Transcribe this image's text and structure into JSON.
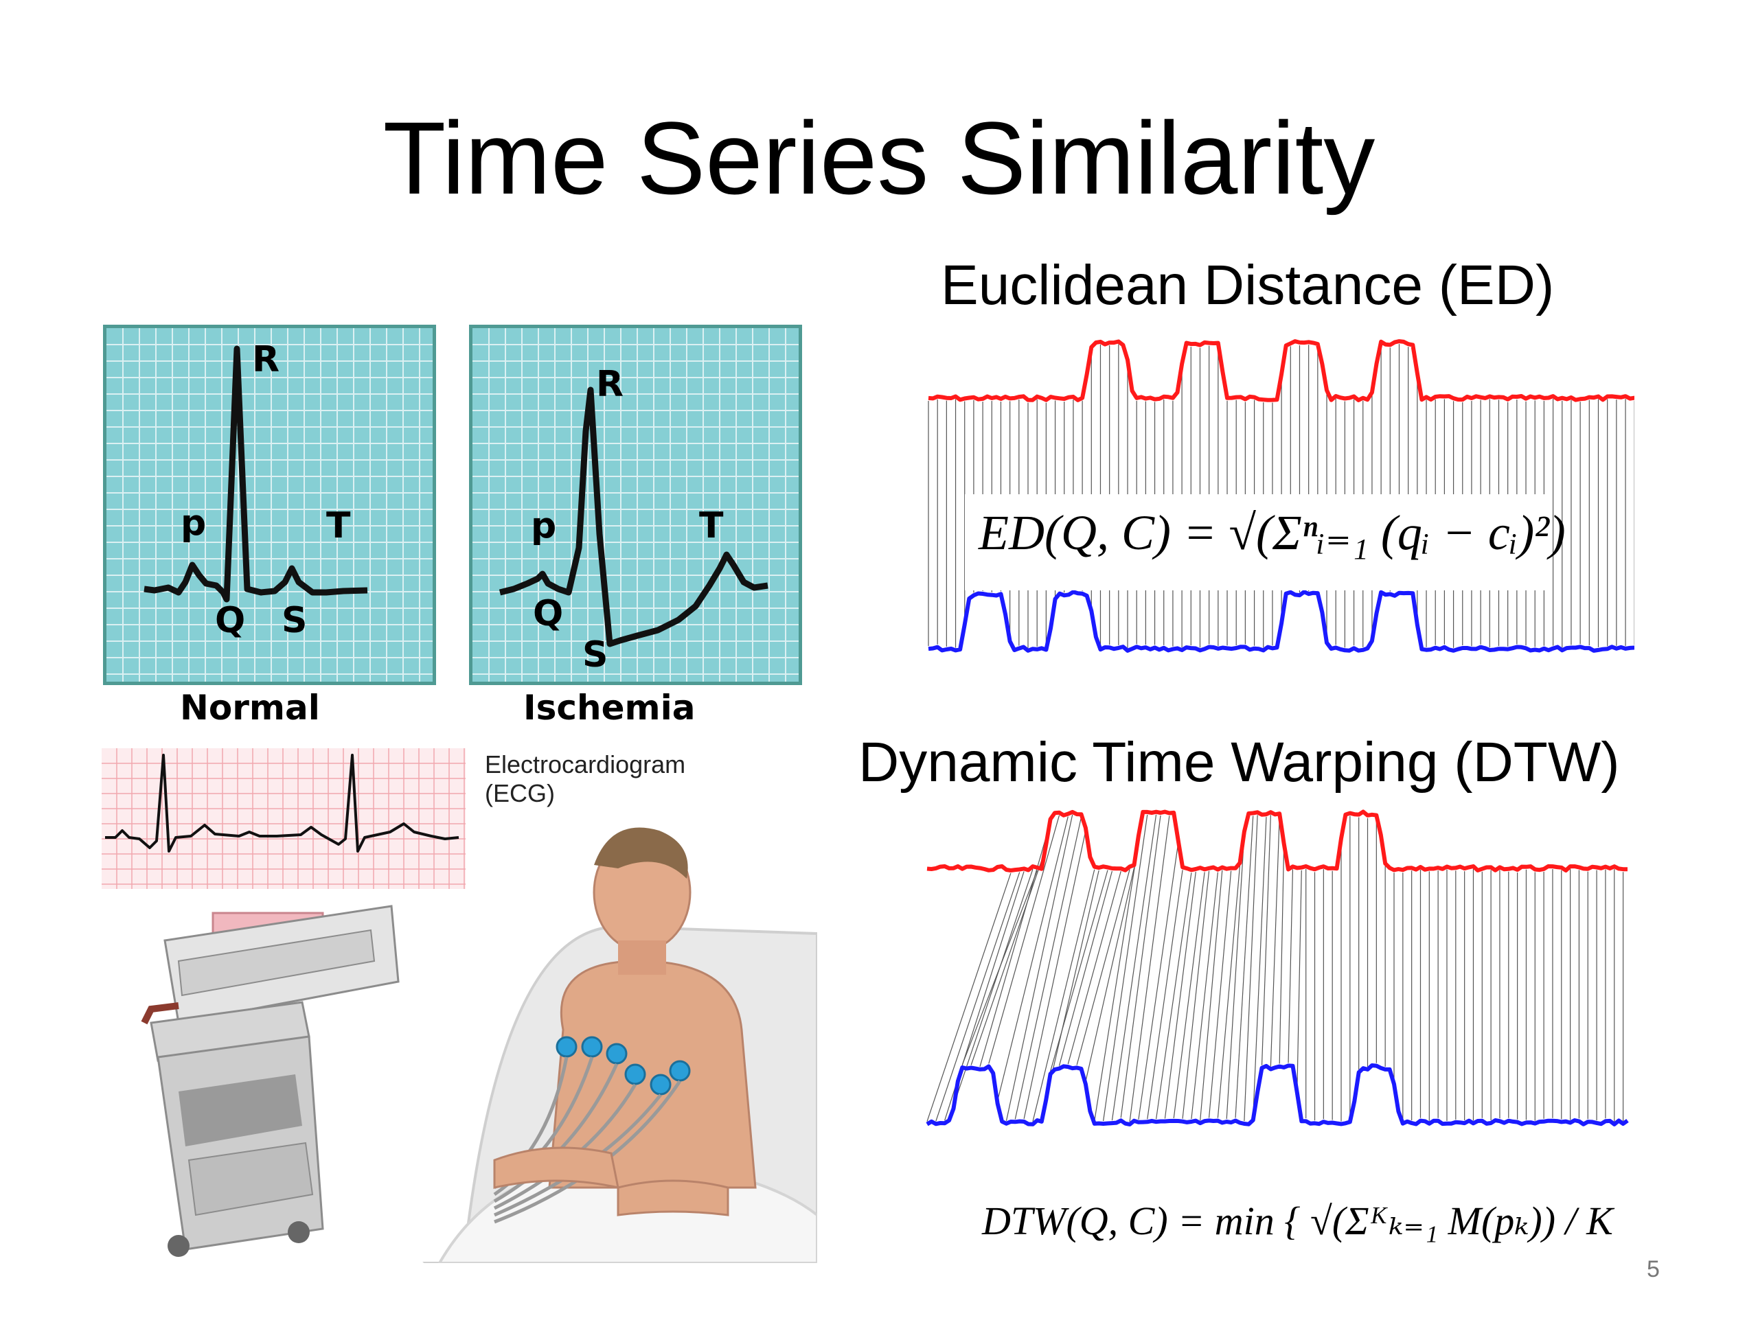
{
  "slide": {
    "title": "Time Series Similarity",
    "page_number": "5"
  },
  "ecg_panels": {
    "normal": {
      "caption": "Normal",
      "labels": {
        "R": "R",
        "P": "p",
        "Q": "Q",
        "S": "S",
        "T": "T"
      }
    },
    "ischemia": {
      "caption": "Ischemia",
      "labels": {
        "R": "R",
        "P": "p",
        "Q": "Q",
        "S": "S",
        "T": "T"
      }
    }
  },
  "ecg_strip": {
    "label_line1": "Electrocardiogram",
    "label_line2": "(ECG)"
  },
  "euclidean": {
    "heading": "Euclidean Distance (ED)",
    "formula": "ED(Q, C) = √(Σⁿᵢ₌₁ (qᵢ − cᵢ)²)"
  },
  "dtw": {
    "heading": "Dynamic Time Warping (DTW)",
    "formula": "DTW(Q, C) = min { √(Σᴷₖ₌₁ M(pₖ)) / K"
  },
  "colors": {
    "series_q": "#ff1a1a",
    "series_c": "#1a1aff",
    "grid_teal": "#86cfd4",
    "grid_line": "#5aa9ae",
    "ecg_pink": "#f2a7ae"
  }
}
